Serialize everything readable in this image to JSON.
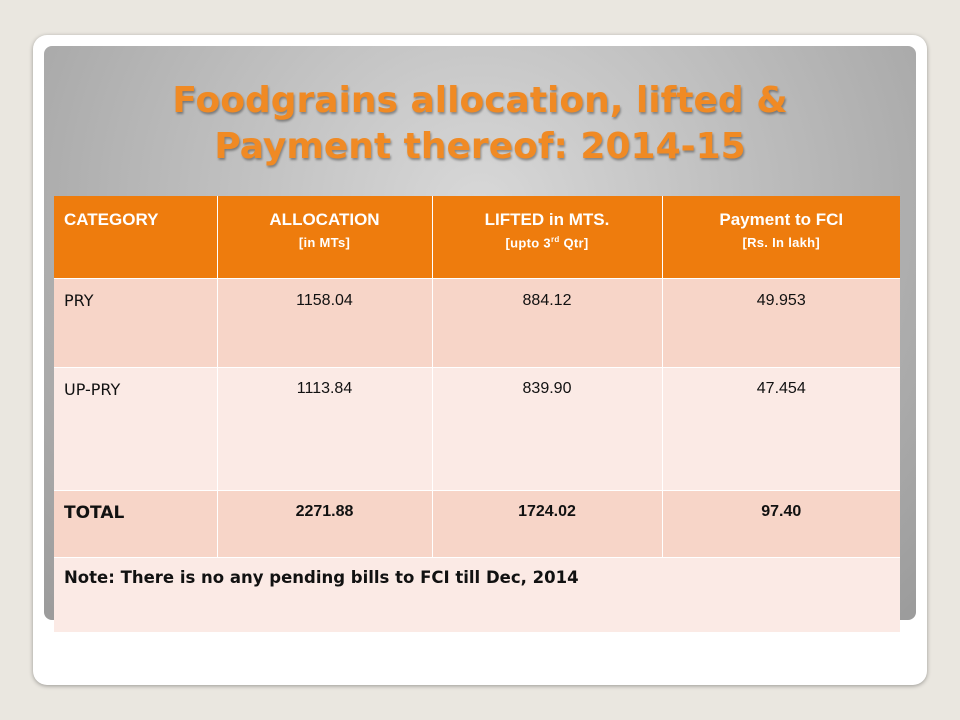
{
  "slide": {
    "title_line1": "Foodgrains allocation, lifted &",
    "title_line2": "Payment thereof: 2014-15"
  },
  "table": {
    "headers": [
      {
        "main": "CATEGORY",
        "sub": ""
      },
      {
        "main": "ALLOCATION",
        "sub": "[in MTs]"
      },
      {
        "main": "LIFTED in MTS.",
        "sub_pre": "[upto 3",
        "sub_sup": "rd",
        "sub_post": " Qtr]"
      },
      {
        "main": "Payment to FCI",
        "sub": "[Rs. In lakh]"
      }
    ],
    "rows": [
      {
        "category": "PRY",
        "allocation": "1158.04",
        "lifted": "884.12",
        "payment": "49.953"
      },
      {
        "category": "UP-PRY",
        "allocation": "1113.84",
        "lifted": "839.90",
        "payment": "47.454"
      },
      {
        "category": "TOTAL",
        "allocation": "2271.88",
        "lifted": "1724.02",
        "payment": "97.40"
      }
    ],
    "note": "Note: There is no any pending bills to FCI till Dec, 2014"
  },
  "colors": {
    "title": "#f08a24",
    "header_bg": "#ee7c0d",
    "row_dark": "#f7d5c8",
    "row_light": "#fbeae5"
  }
}
